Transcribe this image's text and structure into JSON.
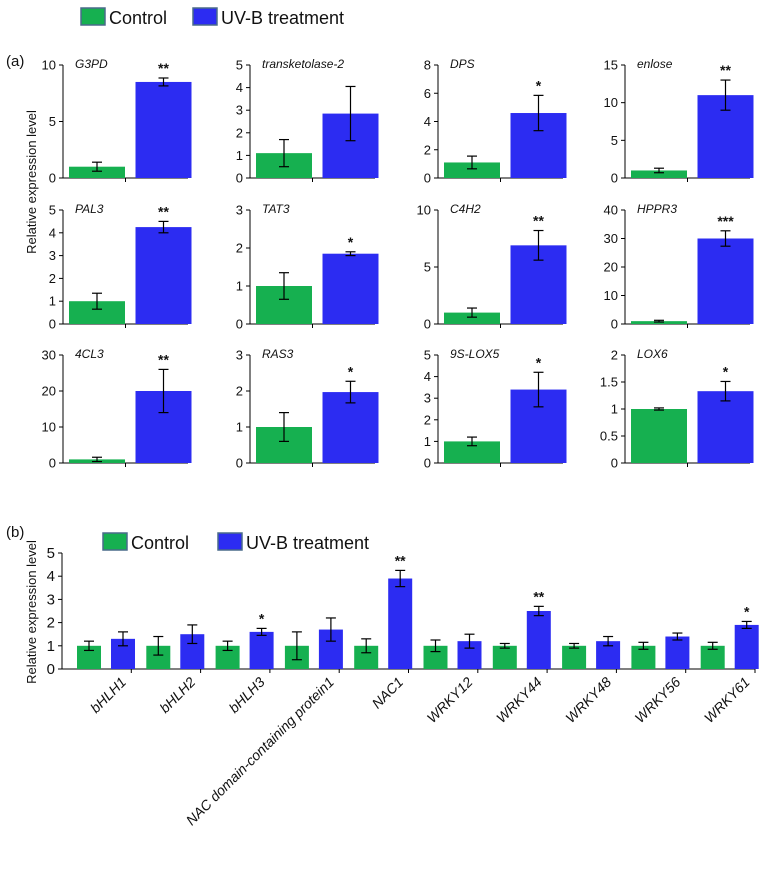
{
  "colors": {
    "control": "#16b050",
    "uvb": "#2c2cf2",
    "legend_border": "#4a6b8a"
  },
  "legend": {
    "control": "Control",
    "uvb": "UV-B treatment"
  },
  "panel_a": {
    "label": "(a)",
    "ylabel": "Relative expression level"
  },
  "panel_b": {
    "label": "(b)",
    "ylabel": "Relative expression level"
  },
  "chart_data": [
    {
      "type": "bar",
      "title": "G3PD",
      "categories": [
        "Control",
        "UV-B treatment"
      ],
      "values": [
        1.0,
        8.5
      ],
      "errors": [
        0.4,
        0.35
      ],
      "significance": "**",
      "ylim": [
        0,
        10
      ],
      "yticks": [
        "0",
        "5",
        "10"
      ]
    },
    {
      "type": "bar",
      "title": "transketolase-2",
      "categories": [
        "Control",
        "UV-B treatment"
      ],
      "values": [
        1.1,
        2.85
      ],
      "errors": [
        0.6,
        1.2
      ],
      "significance": "",
      "ylim": [
        0,
        5
      ],
      "yticks": [
        "0",
        "1",
        "2",
        "3",
        "4",
        "5"
      ]
    },
    {
      "type": "bar",
      "title": "DPS",
      "categories": [
        "Control",
        "UV-B treatment"
      ],
      "values": [
        1.1,
        4.6
      ],
      "errors": [
        0.45,
        1.25
      ],
      "significance": "*",
      "ylim": [
        0,
        8
      ],
      "yticks": [
        "0",
        "2",
        "4",
        "6",
        "8"
      ]
    },
    {
      "type": "bar",
      "title": "enlose",
      "categories": [
        "Control",
        "UV-B treatment"
      ],
      "values": [
        1.0,
        11.0
      ],
      "errors": [
        0.3,
        2.0
      ],
      "significance": "**",
      "ylim": [
        0,
        15
      ],
      "yticks": [
        "0",
        "5",
        "10",
        "15"
      ]
    },
    {
      "type": "bar",
      "title": "PAL3",
      "categories": [
        "Control",
        "UV-B treatment"
      ],
      "values": [
        1.0,
        4.25
      ],
      "errors": [
        0.35,
        0.25
      ],
      "significance": "**",
      "ylim": [
        0,
        5
      ],
      "yticks": [
        "0",
        "1",
        "2",
        "3",
        "4",
        "5"
      ]
    },
    {
      "type": "bar",
      "title": "TAT3",
      "categories": [
        "Control",
        "UV-B treatment"
      ],
      "values": [
        1.0,
        1.85
      ],
      "errors": [
        0.35,
        0.05
      ],
      "significance": "*",
      "ylim": [
        0,
        3
      ],
      "yticks": [
        "0",
        "1",
        "2",
        "3"
      ]
    },
    {
      "type": "bar",
      "title": "C4H2",
      "categories": [
        "Control",
        "UV-B treatment"
      ],
      "values": [
        1.0,
        6.9
      ],
      "errors": [
        0.4,
        1.3
      ],
      "significance": "**",
      "ylim": [
        0,
        10
      ],
      "yticks": [
        "0",
        "5",
        "10"
      ]
    },
    {
      "type": "bar",
      "title": "HPPR3",
      "categories": [
        "Control",
        "UV-B treatment"
      ],
      "values": [
        1.0,
        30.0
      ],
      "errors": [
        0.3,
        2.7
      ],
      "significance": "***",
      "ylim": [
        0,
        40
      ],
      "yticks": [
        "0",
        "10",
        "20",
        "30",
        "40"
      ]
    },
    {
      "type": "bar",
      "title": "4CL3",
      "categories": [
        "Control",
        "UV-B treatment"
      ],
      "values": [
        1.0,
        20.0
      ],
      "errors": [
        0.6,
        6.0
      ],
      "significance": "**",
      "ylim": [
        0,
        30
      ],
      "yticks": [
        "0",
        "10",
        "20",
        "30"
      ]
    },
    {
      "type": "bar",
      "title": "RAS3",
      "categories": [
        "Control",
        "UV-B treatment"
      ],
      "values": [
        1.0,
        1.97
      ],
      "errors": [
        0.4,
        0.3
      ],
      "significance": "*",
      "ylim": [
        0,
        3
      ],
      "yticks": [
        "0",
        "1",
        "2",
        "3"
      ]
    },
    {
      "type": "bar",
      "title": "9S-LOX5",
      "categories": [
        "Control",
        "UV-B treatment"
      ],
      "values": [
        1.0,
        3.4
      ],
      "errors": [
        0.2,
        0.8
      ],
      "significance": "*",
      "ylim": [
        0,
        5
      ],
      "yticks": [
        "0",
        "1",
        "2",
        "3",
        "4",
        "5"
      ]
    },
    {
      "type": "bar",
      "title": "LOX6",
      "categories": [
        "Control",
        "UV-B treatment"
      ],
      "values": [
        1.0,
        1.33
      ],
      "errors": [
        0.02,
        0.18
      ],
      "significance": "*",
      "ylim": [
        0,
        2
      ],
      "yticks": [
        "0",
        "0.5",
        "1",
        "1.5",
        "2"
      ]
    },
    {
      "type": "bar",
      "categories": [
        "bHLH1",
        "bHLH2",
        "bHLH3",
        "NAC domain-containing protein1",
        "NAC1",
        "WRKY12",
        "WRKY44",
        "WRKY48",
        "WRKY56",
        "WRKY61"
      ],
      "series": [
        {
          "name": "Control",
          "values": [
            1,
            1,
            1,
            1,
            1,
            1,
            1,
            1,
            1,
            1
          ],
          "errors": [
            0.2,
            0.4,
            0.2,
            0.6,
            0.3,
            0.25,
            0.1,
            0.1,
            0.15,
            0.15
          ]
        },
        {
          "name": "UV-B treatment",
          "values": [
            1.3,
            1.5,
            1.6,
            1.7,
            3.9,
            1.2,
            2.5,
            1.2,
            1.4,
            1.9
          ],
          "errors": [
            0.3,
            0.4,
            0.15,
            0.5,
            0.35,
            0.3,
            0.2,
            0.2,
            0.15,
            0.15
          ]
        }
      ],
      "significance": [
        "",
        "",
        "*",
        "",
        "**",
        "",
        "**",
        "",
        "",
        "*"
      ],
      "ylim": [
        0,
        5
      ],
      "yticks": [
        "0",
        "1",
        "2",
        "3",
        "4",
        "5"
      ]
    }
  ]
}
